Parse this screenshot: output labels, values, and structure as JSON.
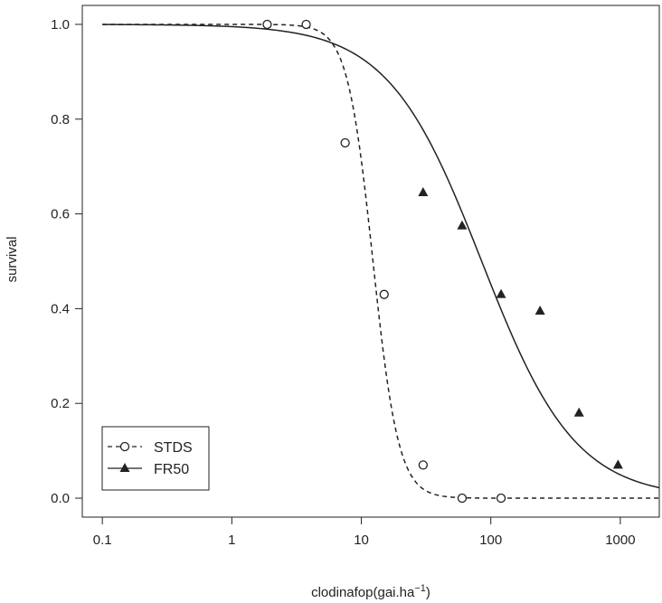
{
  "chart_data": {
    "type": "scatter",
    "xlabel": "clodinafop(gai.ha",
    "xlabel_superscript": "−1",
    "xlabel_close": ")",
    "ylabel": "survival",
    "xscale": "log",
    "xlim": [
      0.07,
      2000
    ],
    "ylim": [
      -0.04,
      1.04
    ],
    "x_ticks": [
      {
        "value": 0.1,
        "label": "0.1"
      },
      {
        "value": 1,
        "label": "1"
      },
      {
        "value": 10,
        "label": "10"
      },
      {
        "value": 100,
        "label": "100"
      },
      {
        "value": 1000,
        "label": "1000"
      }
    ],
    "y_ticks": [
      {
        "value": 0.0,
        "label": "0.0"
      },
      {
        "value": 0.2,
        "label": "0.2"
      },
      {
        "value": 0.4,
        "label": "0.4"
      },
      {
        "value": 0.6,
        "label": "0.6"
      },
      {
        "value": 0.8,
        "label": "0.8"
      },
      {
        "value": 1.0,
        "label": "1.0"
      }
    ],
    "grid": false,
    "legend_position": "bottom-left",
    "series": [
      {
        "name": "STDS",
        "marker": "open-circle",
        "line_style": "dashed",
        "color": "#222222",
        "x": [
          1.875,
          3.75,
          7.5,
          15,
          30,
          60,
          120
        ],
        "y": [
          1.0,
          1.0,
          0.75,
          0.43,
          0.07,
          0.0,
          0.0
        ],
        "fit": {
          "model": "log-logistic",
          "upper": 1.0,
          "lower": 0.0,
          "ed50": 12.3,
          "slope": 4.4
        }
      },
      {
        "name": "FR50",
        "marker": "filled-triangle",
        "line_style": "solid",
        "color": "#222222",
        "x": [
          30,
          60,
          120,
          240,
          480,
          960
        ],
        "y": [
          0.645,
          0.575,
          0.43,
          0.395,
          0.18,
          0.07
        ],
        "fit": {
          "model": "log-logistic",
          "upper": 1.0,
          "lower": 0.0,
          "ed50": 85,
          "slope": 1.2
        }
      }
    ]
  }
}
